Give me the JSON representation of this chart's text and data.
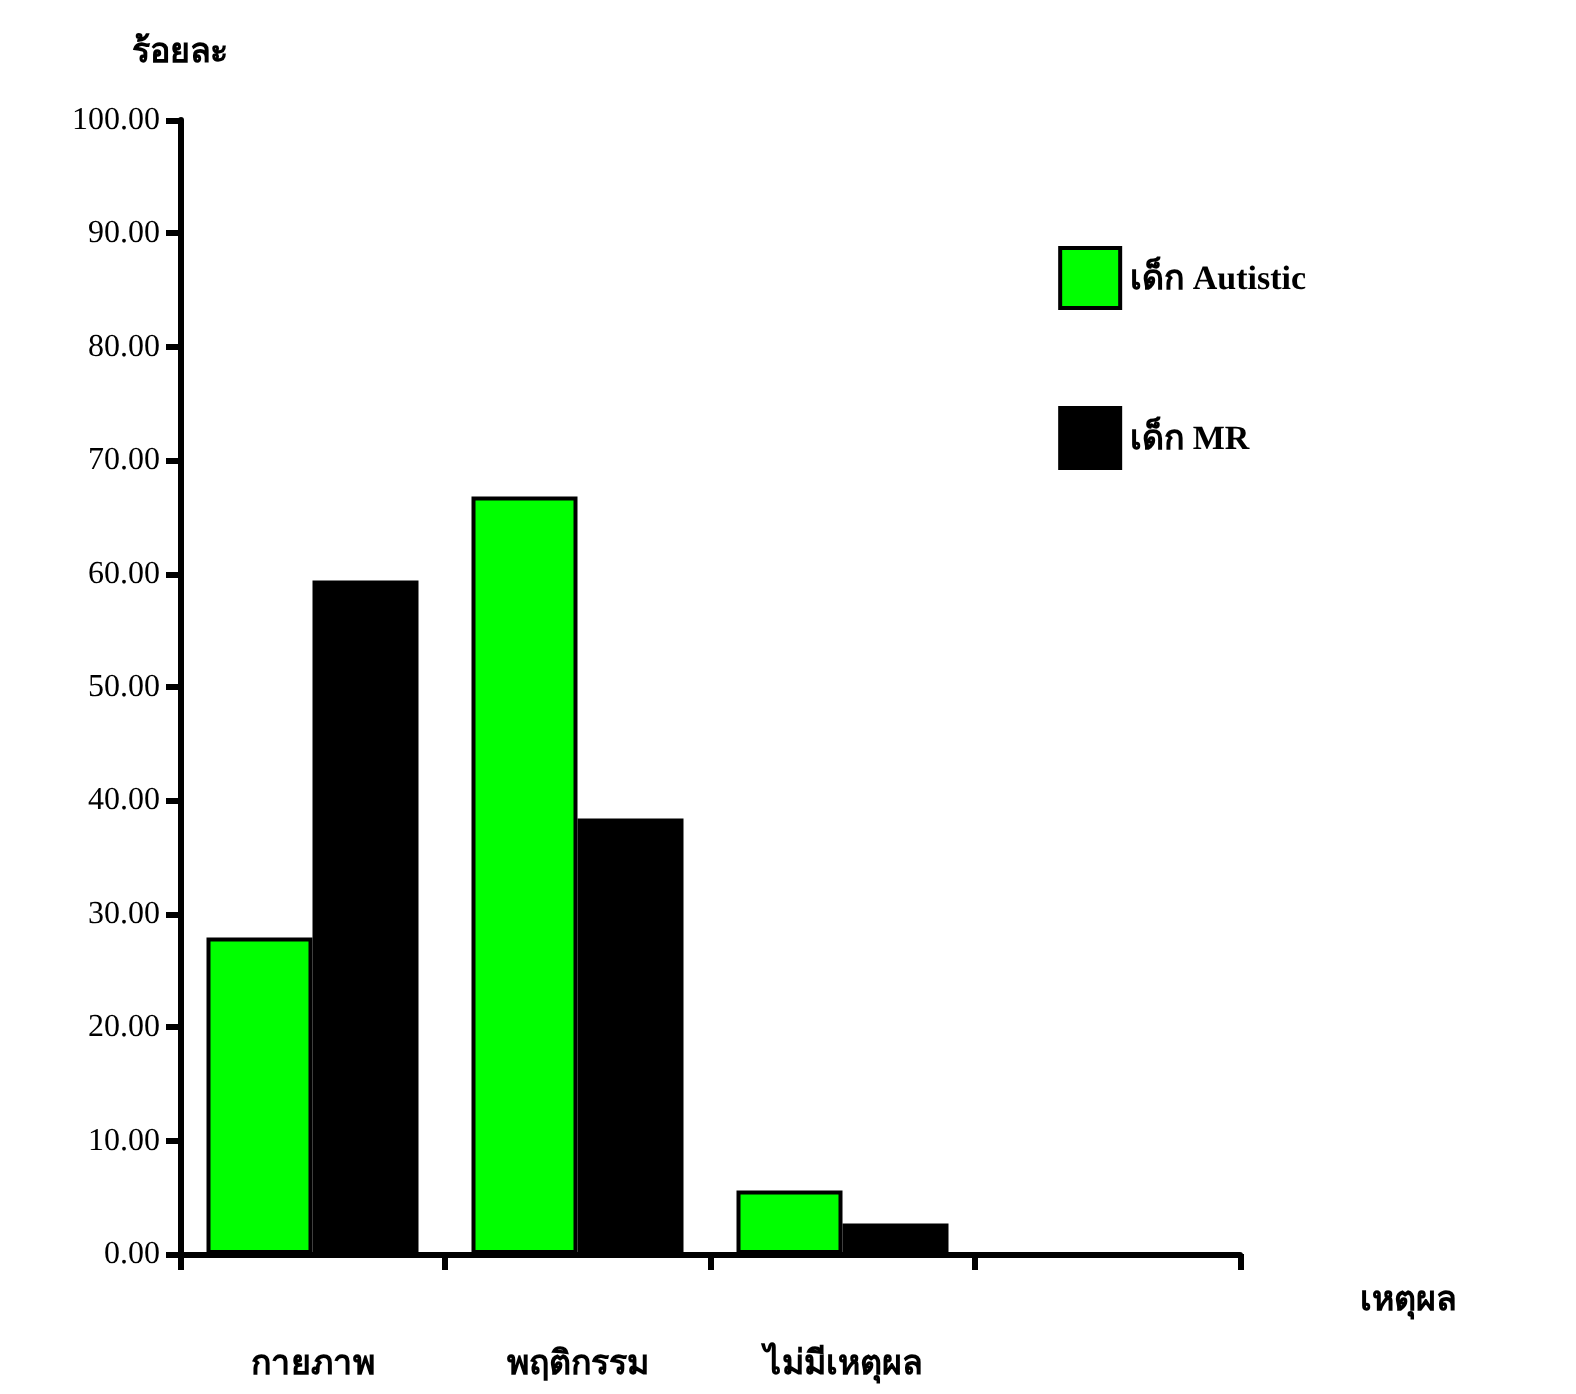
{
  "chart_data": {
    "type": "bar",
    "xlabel": "เหตุผล",
    "ylabel": "ร้อยละ",
    "categories": [
      "กายภาพ",
      "พฤติกรรม",
      "ไม่มีเหตุผล",
      null
    ],
    "series": [
      {
        "name": "เด็ก Autistic",
        "color": "#00ff00",
        "values": [
          27.9,
          66.8,
          5.6,
          null
        ]
      },
      {
        "name": "เด็ก MR",
        "color": "#000000",
        "values": [
          59.4,
          38.4,
          2.7,
          null
        ]
      }
    ],
    "ylim": [
      0,
      100
    ],
    "yticks": [
      {
        "value": 0,
        "label": "0.00"
      },
      {
        "value": 10,
        "label": "10.00"
      },
      {
        "value": 20,
        "label": "20.00"
      },
      {
        "value": 30,
        "label": "30.00"
      },
      {
        "value": 40,
        "label": "40.00"
      },
      {
        "value": 50,
        "label": "50.00"
      },
      {
        "value": 60,
        "label": "60.00"
      },
      {
        "value": 70,
        "label": "70.00"
      },
      {
        "value": 80,
        "label": "80.00"
      },
      {
        "value": 90,
        "label": "90.00"
      },
      {
        "value": 100,
        "label": "100.00"
      }
    ],
    "grid": false,
    "legend": "top right"
  }
}
